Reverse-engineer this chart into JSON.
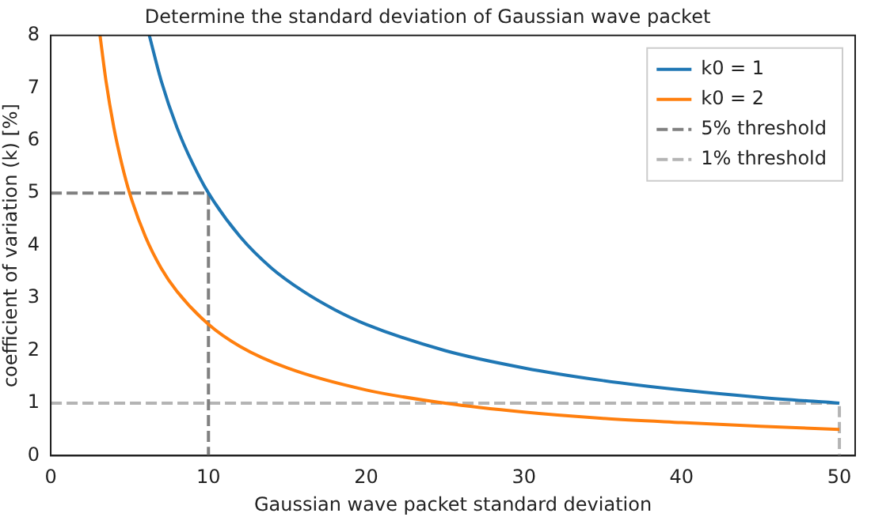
{
  "chart_data": {
    "type": "line",
    "title": "Determine the standard deviation of Gaussian wave packet",
    "xlabel": "Gaussian wave packet standard deviation",
    "ylabel": "coefficient of variation (k) [%]",
    "xlim": [
      0,
      51
    ],
    "xticks": [
      0,
      10,
      20,
      30,
      40,
      50
    ],
    "ylim": [
      0,
      8
    ],
    "yticks": [
      0,
      1,
      2,
      3,
      4,
      5,
      6,
      7,
      8
    ],
    "grid": false,
    "legend": "top right",
    "marker": "none",
    "series": [
      {
        "name": "k0 = 1",
        "color": "#1f77b4",
        "line_style": "solid",
        "x": [
          6.25,
          7,
          8,
          9,
          10,
          12,
          14,
          16,
          18,
          20,
          25,
          30,
          35,
          40,
          45,
          50
        ],
        "values": [
          8,
          7.14,
          6.25,
          5.56,
          5,
          4.17,
          3.57,
          3.13,
          2.78,
          2.5,
          2,
          1.67,
          1.43,
          1.25,
          1.11,
          1
        ]
      },
      {
        "name": "k0 = 2",
        "color": "#ff7f0e",
        "line_style": "solid",
        "x": [
          3.125,
          3.5,
          4,
          4.5,
          5,
          6,
          7,
          8,
          10,
          12,
          15,
          20,
          25,
          30,
          35,
          40,
          45,
          50
        ],
        "values": [
          8,
          7.14,
          6.25,
          5.56,
          5,
          4.17,
          3.57,
          3.13,
          2.5,
          2.08,
          1.67,
          1.25,
          1,
          0.83,
          0.71,
          0.63,
          0.56,
          0.5
        ]
      },
      {
        "name": "5% threshold",
        "color": "#808080",
        "line_style": "dashed",
        "x": [
          0,
          10,
          10
        ],
        "values": [
          5,
          5,
          0
        ]
      },
      {
        "name": "1% threshold",
        "color": "#b4b4b4",
        "line_style": "dashed",
        "x": [
          0,
          50,
          50
        ],
        "values": [
          1,
          1,
          0
        ]
      }
    ]
  }
}
